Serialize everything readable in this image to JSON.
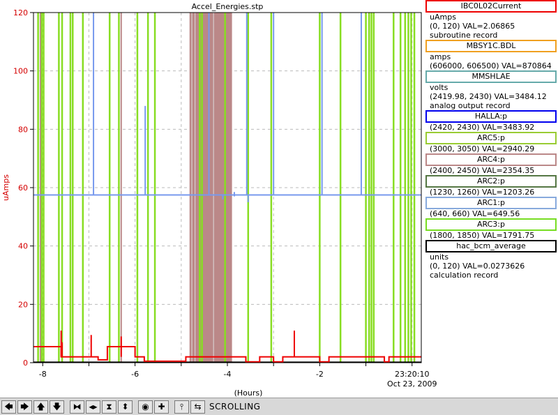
{
  "chart_data": {
    "type": "line",
    "title": "Accel_Energies.stp",
    "ylabel": "uAmps",
    "xlabel": "(Hours)",
    "ylim": [
      0,
      120
    ],
    "xlim": [
      -8.2,
      0.2
    ],
    "y_ticks": [
      "0",
      "20",
      "40",
      "60",
      "80",
      "100",
      "120"
    ],
    "x_ticks": [
      "-8",
      "-6",
      "-4",
      "-2"
    ],
    "x_end_time": "23:20:10",
    "x_end_date": "Oct 23, 2009",
    "grid": true,
    "series": [
      {
        "name": "IBC0L02Current",
        "color": "#ee0000",
        "points": [
          [
            -8.2,
            5.5
          ],
          [
            -7.6,
            5.5
          ],
          [
            -7.6,
            2
          ],
          [
            -6.8,
            2
          ],
          [
            -6.8,
            1
          ],
          [
            -6.6,
            1
          ],
          [
            -6.6,
            5.5
          ],
          [
            -6.0,
            5.5
          ],
          [
            -6.0,
            2
          ],
          [
            -5.8,
            2
          ],
          [
            -5.8,
            0.5
          ],
          [
            -4.9,
            0.5
          ],
          [
            -4.9,
            2
          ],
          [
            -3.6,
            2
          ],
          [
            -3.6,
            0.3
          ],
          [
            -3.3,
            0.3
          ],
          [
            -3.3,
            2
          ],
          [
            -3.0,
            2
          ],
          [
            -3.0,
            0.3
          ],
          [
            -2.8,
            0.3
          ],
          [
            -2.8,
            2
          ],
          [
            -2.0,
            2
          ],
          [
            -2.0,
            0.3
          ],
          [
            -1.8,
            0.3
          ],
          [
            -1.8,
            2
          ],
          [
            -0.6,
            2
          ],
          [
            -0.6,
            0.3
          ],
          [
            -0.5,
            0.3
          ],
          [
            -0.5,
            2
          ],
          [
            0.2,
            2
          ]
        ],
        "spikes": [
          [
            -7.6,
            11
          ],
          [
            -7.58,
            7
          ],
          [
            -6.95,
            9.5
          ],
          [
            -6.3,
            9
          ],
          [
            -2.55,
            11
          ]
        ]
      },
      {
        "name": "ARC1:p",
        "color": "#7799ee",
        "baseline": 57.5,
        "baseline_range": [
          -8.2,
          0.2
        ],
        "spikes": [
          [
            -6.9,
            120
          ],
          [
            -5.78,
            88
          ],
          [
            -4.4,
            120
          ],
          [
            -3.85,
            58.5
          ],
          [
            -3.58,
            120
          ],
          [
            -3.0,
            120
          ],
          [
            -1.95,
            120
          ],
          [
            -1.1,
            120
          ],
          [
            -3.55,
            55
          ],
          [
            -3.85,
            57
          ],
          [
            -4.1,
            56
          ]
        ]
      },
      {
        "name": "ARC3:p",
        "color": "#88dd22",
        "verticals": [
          -8.1,
          -8.02,
          -7.98,
          -7.65,
          -7.58,
          -7.4,
          -7.35,
          -7.13,
          -6.55,
          -6.35,
          -5.95,
          -5.72,
          -5.57,
          -4.6,
          -4.55,
          -4.05,
          -3.55,
          -3.05,
          -2.0,
          -1.55,
          -1.0,
          -0.93,
          -0.88,
          -0.83,
          -0.4,
          -0.25,
          -0.15,
          -0.08,
          -0.02,
          0.05
        ]
      },
      {
        "name": "ARC4:p",
        "color": "#bb8888",
        "band": [
          -4.82,
          -3.9
        ],
        "verticals": [
          -8.05,
          -6.3
        ]
      },
      {
        "name": "hac_bcm_average",
        "color": "#000000",
        "points": [
          [
            -8.2,
            0.2
          ],
          [
            0.2,
            0.2
          ]
        ]
      }
    ]
  },
  "legend": [
    {
      "name": "IBC0L02Current",
      "color": "#ee0000",
      "lines": [
        "uAmps",
        "(0, 120) VAL=2.06865",
        "subroutine record"
      ]
    },
    {
      "name": "MBSY1C.BDL",
      "color": "#f0a020",
      "lines": [
        "amps",
        "(606000, 606500) VAL=870864"
      ]
    },
    {
      "name": "MMSHLAE",
      "color": "#66aaaa",
      "lines": [
        "volts",
        "(2419.98, 2430) VAL=3484.12",
        "analog output record"
      ]
    },
    {
      "name": "HALLA:p",
      "color": "#0000ee",
      "lines": [
        "(2420, 2430) VAL=3483.92"
      ]
    },
    {
      "name": "ARC5:p",
      "color": "#99cc33",
      "lines": [
        "(3000, 3050) VAL=2940.29"
      ]
    },
    {
      "name": "ARC4:p",
      "color": "#bb8888",
      "lines": [
        "(2400, 2450) VAL=2354.35"
      ]
    },
    {
      "name": "ARC2:p",
      "color": "#557744",
      "lines": [
        "(1230, 1260) VAL=1203.26"
      ]
    },
    {
      "name": "ARC1:p",
      "color": "#88aadd",
      "lines": [
        "(640, 660) VAL=649.56"
      ]
    },
    {
      "name": "ARC3:p",
      "color": "#77dd22",
      "lines": [
        "(1800, 1850) VAL=1791.75"
      ]
    },
    {
      "name": "hac_bcm_average",
      "color": "#000000",
      "lines": [
        "units",
        "(0, 120) VAL=0.0273626",
        "calculation record"
      ]
    }
  ],
  "toolbar": {
    "buttons": [
      {
        "name": "scroll-left-button",
        "glyph": "🡄"
      },
      {
        "name": "scroll-right-button",
        "glyph": "🡆"
      },
      {
        "name": "scroll-up-button",
        "glyph": "🡅"
      },
      {
        "name": "scroll-down-button",
        "glyph": "🡇"
      },
      {
        "name": "zoom-in-horizontal-button",
        "glyph": "⧓"
      },
      {
        "name": "zoom-out-horizontal-button",
        "glyph": "◂▸"
      },
      {
        "name": "zoom-in-vertical-button",
        "glyph": "⧗"
      },
      {
        "name": "zoom-out-vertical-button",
        "glyph": "⬍"
      },
      {
        "name": "auto-scale-button",
        "glyph": "◉"
      },
      {
        "name": "add-button",
        "glyph": "✚"
      },
      {
        "name": "stagger-button",
        "glyph": "⫯"
      },
      {
        "name": "scroll-mode-button",
        "glyph": "⇆"
      }
    ],
    "mode": "SCROLLING"
  }
}
